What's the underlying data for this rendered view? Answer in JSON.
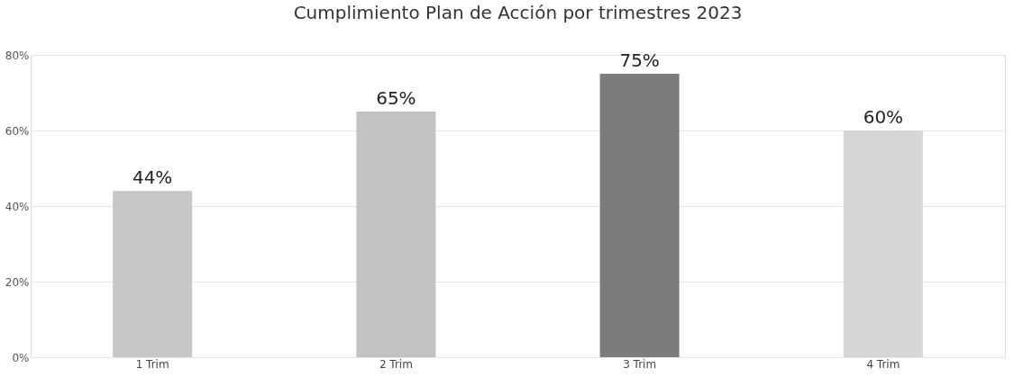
{
  "chart_data": {
    "type": "bar",
    "title": "Cumplimiento Plan de Acción por trimestres 2023",
    "categories": [
      "1 Trim",
      "2 Trim",
      "3 Trim",
      "4 Trim"
    ],
    "values": [
      44,
      65,
      75,
      60
    ],
    "colors": [
      "#c6c6c6",
      "#c2c2c2",
      "#7c7c7c",
      "#d6d6d6"
    ],
    "value_labels": [
      "44%",
      "65%",
      "75%",
      "60%"
    ],
    "ylim": [
      0,
      80
    ],
    "yticks": [
      {
        "value": 0,
        "label": "0%"
      },
      {
        "value": 20,
        "label": "20%"
      },
      {
        "value": 40,
        "label": "40%"
      },
      {
        "value": 60,
        "label": "60%"
      },
      {
        "value": 80,
        "label": "80%"
      }
    ],
    "grid": "y"
  }
}
